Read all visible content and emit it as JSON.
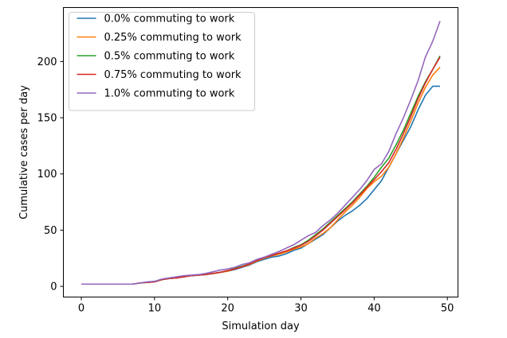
{
  "chart_data": {
    "type": "line",
    "title": "",
    "xlabel": "Simulation day",
    "ylabel": "Cumulative cases per day",
    "xlim": [
      -2.45,
      51.45
    ],
    "ylim": [
      -9.5,
      248
    ],
    "xticks": [
      0,
      10,
      20,
      30,
      40,
      50
    ],
    "yticks": [
      0,
      50,
      100,
      150,
      200
    ],
    "grid": false,
    "legend_position": "top-left",
    "x": [
      0,
      1,
      2,
      3,
      4,
      5,
      6,
      7,
      8,
      9,
      10,
      11,
      12,
      13,
      14,
      15,
      16,
      17,
      18,
      19,
      20,
      21,
      22,
      23,
      24,
      25,
      26,
      27,
      28,
      29,
      30,
      31,
      32,
      33,
      34,
      35,
      36,
      37,
      38,
      39,
      40,
      41,
      42,
      43,
      44,
      45,
      46,
      47,
      48,
      49
    ],
    "series": [
      {
        "name": "0.0% commuting to work",
        "color": "#1f77b4",
        "values": [
          2,
          2,
          2,
          2,
          2,
          2,
          2,
          2,
          3,
          3.5,
          4,
          6,
          7,
          7.5,
          8.5,
          9.5,
          10,
          10.5,
          11.5,
          12.5,
          13.5,
          15,
          17,
          19,
          22,
          24,
          26,
          27,
          29,
          32,
          34,
          38,
          42,
          46,
          52,
          58,
          63,
          67,
          72,
          78,
          86,
          94,
          106,
          118,
          130,
          142,
          157,
          170,
          178,
          178
        ]
      },
      {
        "name": "0.25% commuting to work",
        "color": "#ff7f0e",
        "values": [
          2,
          2,
          2,
          2,
          2,
          2,
          2,
          2,
          3,
          3.5,
          4,
          6,
          7,
          7.5,
          8.5,
          9.5,
          10,
          10.5,
          11.5,
          12.5,
          13.5,
          15.5,
          17.5,
          19.5,
          22.5,
          25,
          27,
          28.5,
          30.5,
          33,
          35,
          38,
          43,
          47,
          52,
          59,
          66,
          72,
          79,
          87,
          93,
          98,
          106,
          118,
          132,
          147,
          163,
          177,
          188,
          195
        ]
      },
      {
        "name": "0.5% commuting to work",
        "color": "#2ca02c",
        "values": [
          2,
          2,
          2,
          2,
          2,
          2,
          2,
          2,
          3,
          3.5,
          4,
          6,
          7,
          7.5,
          8.5,
          9.5,
          10,
          10.5,
          11.5,
          12.5,
          14,
          16,
          18,
          20,
          23,
          25.5,
          27.5,
          29.5,
          31.5,
          34.5,
          37,
          41,
          46,
          51,
          57,
          63,
          69,
          75,
          82,
          89,
          97,
          106,
          114,
          126,
          139,
          154,
          169,
          182,
          193,
          205
        ]
      },
      {
        "name": "0.75% commuting to work",
        "color": "#d62728",
        "values": [
          2,
          2,
          2,
          2,
          2,
          2,
          2,
          2,
          3,
          3.5,
          4,
          6,
          7,
          7.5,
          8.5,
          9.5,
          10,
          10.5,
          11.5,
          12.5,
          14,
          15.5,
          17.5,
          20,
          23,
          25.5,
          27.5,
          29.5,
          31.5,
          34,
          36.5,
          40,
          45,
          50,
          56,
          62,
          68,
          74,
          81,
          88,
          95,
          102,
          110,
          122,
          136,
          151,
          167,
          181,
          193,
          204
        ]
      },
      {
        "name": "1.0% commuting to work",
        "color": "#9467bd",
        "values": [
          2,
          2,
          2,
          2,
          2,
          2,
          2,
          2,
          3,
          4,
          4.5,
          6.5,
          7.5,
          8.5,
          9.5,
          10,
          10.5,
          11.5,
          13,
          14.5,
          15.5,
          17,
          19.5,
          21,
          24,
          26,
          28.5,
          31,
          34,
          37,
          41,
          45,
          48,
          54,
          59,
          65,
          72,
          79,
          86,
          94,
          104,
          109,
          120,
          136,
          150,
          166,
          183,
          204,
          218,
          236
        ]
      }
    ]
  }
}
